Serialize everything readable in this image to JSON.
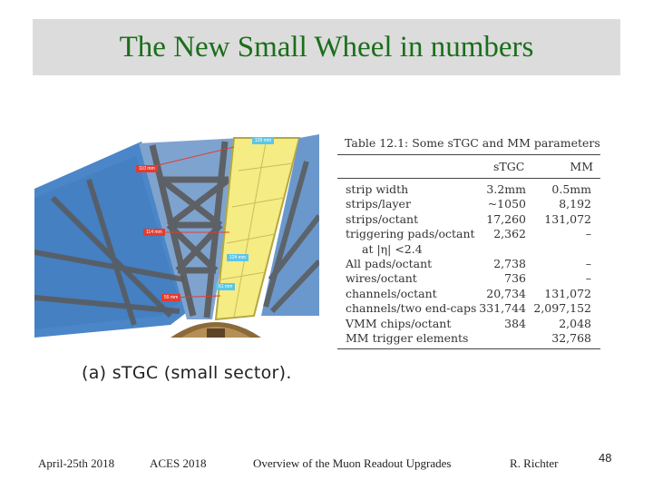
{
  "slide": {
    "title": "The New Small Wheel in numbers",
    "title_color": "#1a6e1a"
  },
  "figure": {
    "caption": "(a) sTGC (small sector).",
    "labels": {
      "top": "129 mm",
      "l110": "110 mm",
      "l114": "114 mm",
      "l124": "124 mm",
      "l61": "61 mm",
      "l55": "55 mm"
    }
  },
  "table": {
    "title": "Table 12.1: Some sTGC and MM parameters",
    "headers": [
      "sTGC",
      "MM"
    ],
    "rows": [
      {
        "label": "strip width",
        "stgc": "3.2mm",
        "mm": "0.5mm"
      },
      {
        "label": "strips/layer",
        "stgc": "~1050",
        "mm": "8,192"
      },
      {
        "label": "strips/octant",
        "stgc": "17,260",
        "mm": "131,072"
      },
      {
        "label": "triggering pads/octant",
        "stgc": "2,362",
        "mm": "–"
      },
      {
        "label": "at |η| <2.4",
        "stgc": "",
        "mm": ""
      },
      {
        "label": "All pads/octant",
        "stgc": "2,738",
        "mm": "–"
      },
      {
        "label": "wires/octant",
        "stgc": "736",
        "mm": "–"
      },
      {
        "label": "channels/octant",
        "stgc": "20,734",
        "mm": "131,072"
      },
      {
        "label": "channels/two end-caps",
        "stgc": "331,744",
        "mm": "2,097,152"
      },
      {
        "label": "VMM chips/octant",
        "stgc": "384",
        "mm": "2,048"
      },
      {
        "label": "MM trigger elements",
        "stgc": "",
        "mm": "32,768"
      }
    ]
  },
  "footer": {
    "date": "April-25th 2018",
    "event": "ACES 2018",
    "talk": "Overview of the Muon Readout Upgrades",
    "author": "R. Richter",
    "page": "48"
  }
}
